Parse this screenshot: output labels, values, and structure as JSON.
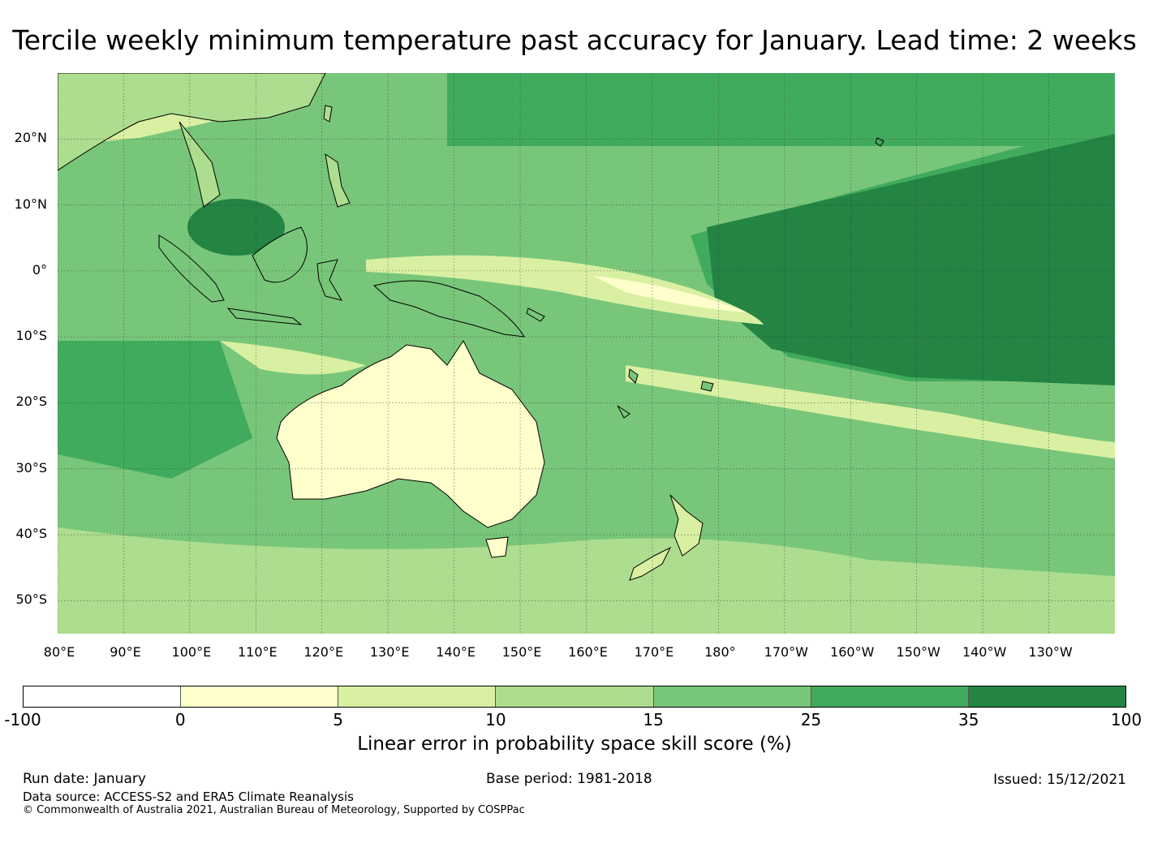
{
  "title": "Tercile weekly minimum temperature past accuracy for January. Lead time: 2 weeks",
  "map": {
    "lat_labels": [
      "20°N",
      "10°N",
      "0°",
      "10°S",
      "20°S",
      "30°S",
      "40°S",
      "50°S"
    ],
    "lat_values": [
      20,
      10,
      0,
      -10,
      -20,
      -30,
      -40,
      -50
    ],
    "lon_labels": [
      "80°E",
      "90°E",
      "100°E",
      "110°E",
      "120°E",
      "130°E",
      "140°E",
      "150°E",
      "160°E",
      "170°E",
      "180°",
      "170°W",
      "160°W",
      "150°W",
      "140°W",
      "130°W"
    ],
    "lon_values": [
      80,
      90,
      100,
      110,
      120,
      130,
      140,
      150,
      160,
      170,
      180,
      190,
      200,
      210,
      220,
      230
    ],
    "lat_range": [
      -55,
      30
    ],
    "lon_range": [
      80,
      240
    ]
  },
  "colorbar": {
    "ticks": [
      "-100",
      "0",
      "5",
      "10",
      "15",
      "25",
      "35",
      "100"
    ],
    "colors": [
      "#ffffff",
      "#ffffcc",
      "#d9f0a3",
      "#addd8e",
      "#78c67a",
      "#41ab5d",
      "#238443"
    ],
    "label": "Linear error in probability space skill score (%)"
  },
  "footer": {
    "run_date": "Run date: January",
    "base_period": "Base period: 1981-2018",
    "issued": "Issued: 15/12/2021",
    "data_source": "Data source: ACCESS-S2 and ERA5 Climate Reanalysis",
    "copyright": "© Commonwealth of Australia 2021, Australian Bureau of Meteorology, Supported by COSPPac"
  }
}
